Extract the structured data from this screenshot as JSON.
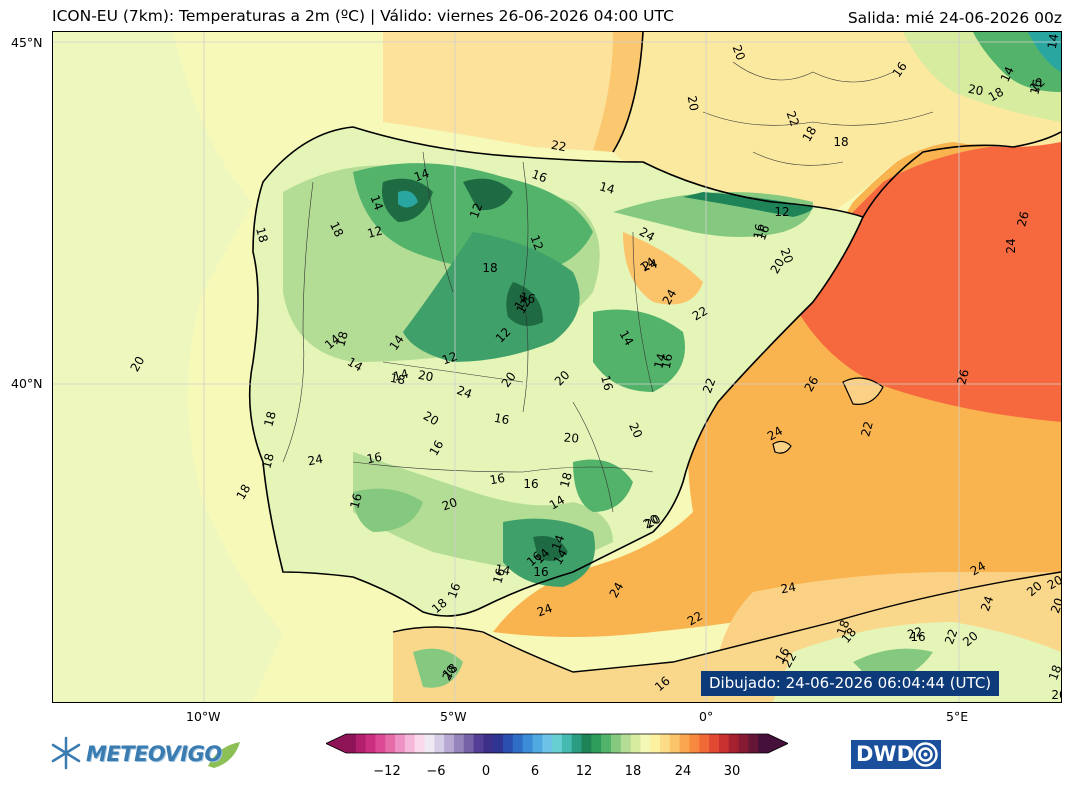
{
  "header": {
    "title": "ICON-EU (7km): Temperaturas a 2m (ºC) | Válido: viernes 26-06-2026 04:00 UTC",
    "run": "Salida: mié 24-06-2026 00z"
  },
  "map": {
    "lat_labels": [
      "45°N",
      "40°N"
    ],
    "lon_labels": [
      "10°W",
      "5°W",
      "0°",
      "5°E"
    ],
    "drawn_label": "Dibujado: 24-06-2026 06:04:44 (UTC)",
    "contour_labels": [
      "20",
      "20",
      "20",
      "22",
      "16",
      "14",
      "22",
      "18",
      "18",
      "14",
      "20",
      "16",
      "18",
      "16",
      "14",
      "14",
      "12",
      "12",
      "16",
      "24",
      "12",
      "12",
      "14",
      "14",
      "12",
      "18",
      "16",
      "24",
      "20",
      "12",
      "16",
      "14",
      "12",
      "24",
      "18",
      "18",
      "16",
      "24",
      "22",
      "18",
      "14",
      "14",
      "14",
      "26",
      "20",
      "14",
      "12",
      "14",
      "14",
      "22",
      "18",
      "18",
      "20",
      "20",
      "20",
      "26",
      "16",
      "24",
      "16",
      "16",
      "20",
      "22",
      "26",
      "16",
      "24",
      "20",
      "20",
      "18",
      "18",
      "16",
      "20",
      "16",
      "24",
      "16",
      "18",
      "14",
      "20",
      "14",
      "16",
      "20",
      "16",
      "14",
      "14",
      "24",
      "14",
      "24",
      "18",
      "16",
      "24",
      "24",
      "22",
      "18",
      "16",
      "22",
      "18",
      "20",
      "20",
      "20",
      "20",
      "18",
      "20",
      "22",
      "16",
      "22",
      "16",
      "18",
      "20",
      "24",
      "16"
    ],
    "colors": {
      "sea": "#f6f9b8",
      "warm_sea": "#fbd185",
      "orange": "#f9b450",
      "hot": "#f6693f",
      "land_pale": "#e5f5b8",
      "green": "#3fa06a",
      "green_dark": "#1e6b43",
      "teal": "#2aa6a0"
    }
  },
  "colorbar": {
    "ticks": [
      "−12",
      "−6",
      "0",
      "6",
      "12",
      "18",
      "24",
      "30"
    ],
    "colors": [
      "#8e1457",
      "#b21f6d",
      "#cc2f80",
      "#dc4a96",
      "#e56ca9",
      "#ee92c3",
      "#f6b8da",
      "#fad9ec",
      "#eee9f3",
      "#d6cde6",
      "#b7a9d2",
      "#9685bd",
      "#7562a7",
      "#533f95",
      "#3b2f8a",
      "#2e3593",
      "#2a4fb0",
      "#2f6dc6",
      "#3b8bd6",
      "#4fa8e0",
      "#6cc3e6",
      "#68cfd3",
      "#46b9b0",
      "#2a9d83",
      "#1e8458",
      "#2e9c5a",
      "#53b36b",
      "#84c97f",
      "#b3dc94",
      "#d8ec9f",
      "#f4f8b6",
      "#fdf0a0",
      "#fddc87",
      "#fbc36a",
      "#f9a64f",
      "#f6883f",
      "#f06a37",
      "#e14a32",
      "#c8312f",
      "#a6212f",
      "#851a32",
      "#651637",
      "#45103a"
    ]
  },
  "logos": {
    "left": "METEOVIGO",
    "right": "DWD"
  }
}
